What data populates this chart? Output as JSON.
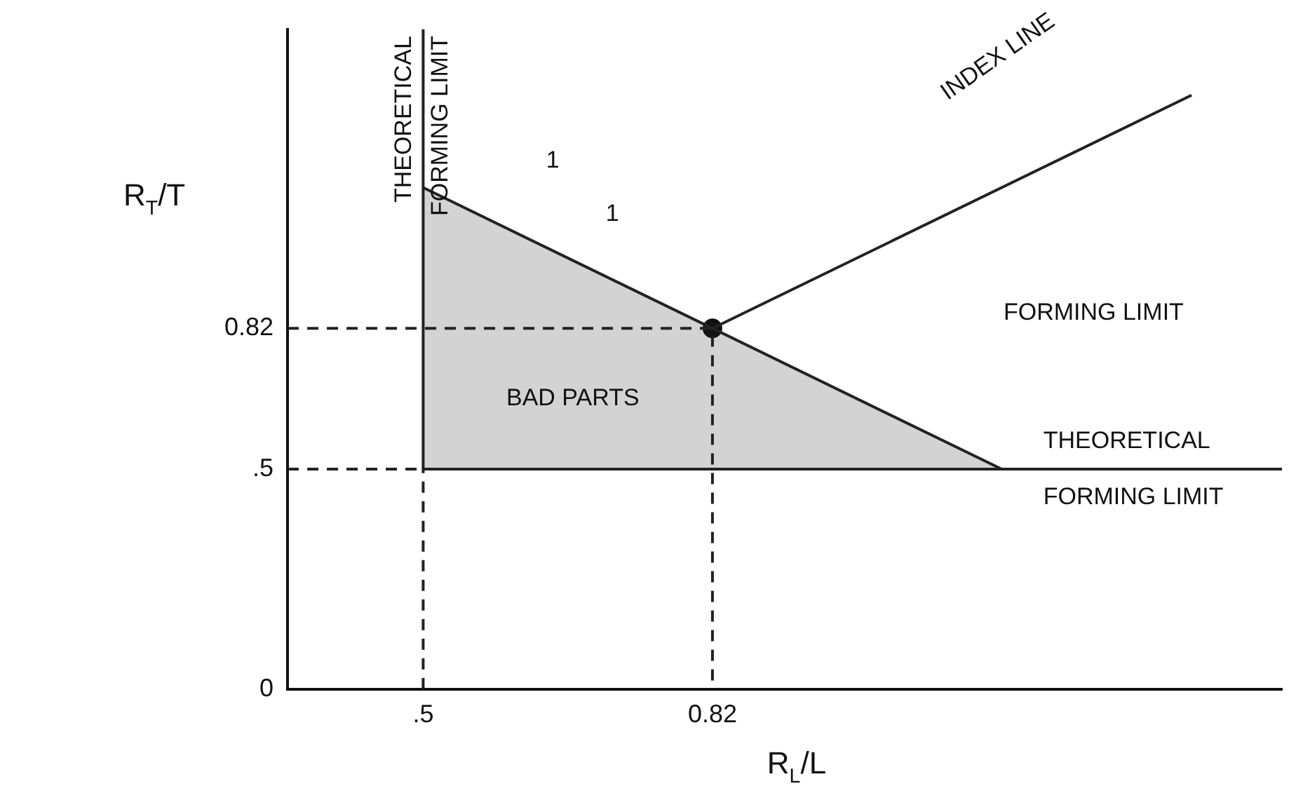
{
  "chart_data": {
    "type": "line",
    "xlabel": "R$_{L}$/L",
    "ylabel": "R$_{T}$/T",
    "xlim": [
      0.35,
      1.45
    ],
    "ylim": [
      0,
      1.5
    ],
    "xticks": [
      {
        "value": 0.5,
        "label": ".5"
      },
      {
        "value": 0.82,
        "label": "0.82"
      }
    ],
    "yticks": [
      0,
      {
        "value": 0.5,
        "label": ".5"
      },
      {
        "value": 0.82,
        "label": "0.82"
      }
    ],
    "grid": false,
    "legend": false,
    "series": [
      {
        "type": "area",
        "color": "#222222",
        "x": [
          0.5,
          1.14
        ],
        "values": [
          1.14,
          0.5
        ]
      },
      {
        "type": "line",
        "color": "#222222",
        "x": [
          0.82,
          1.35
        ],
        "values": [
          0.82,
          1.35
        ]
      },
      {
        "type": "line",
        "color": "#222222",
        "x": [
          0.5,
          0.5
        ],
        "values": [
          0.5,
          1.5
        ]
      },
      {
        "type": "line",
        "color": "#222222",
        "x": [
          0.5,
          1.45
        ],
        "values": [
          0.5,
          0.5
        ]
      },
      {
        "type": "line",
        "color": "#222222",
        "line_style": "dashed",
        "x": [
          0.35,
          0.82,
          0.82
        ],
        "values": [
          0.82,
          0.82,
          0
        ]
      },
      {
        "type": "line",
        "color": "#222222",
        "line_style": "dashed",
        "x": [
          0.5,
          0.5
        ],
        "values": [
          0,
          0.5
        ]
      },
      {
        "type": "line",
        "color": "#222222",
        "line_style": "dashed",
        "x": [
          0.35,
          0.5
        ],
        "values": [
          0.5,
          0.5
        ]
      },
      {
        "type": "scatter",
        "color": "#111111",
        "marker": "circle",
        "x": [
          0.82
        ],
        "values": [
          0.82
        ]
      }
    ],
    "annotations": [
      "INDEX LINE",
      "FORMING LIMIT",
      "BAD PARTS",
      "THEORETICAL FORMING LIMIT",
      "THEORETICAL FORMING LIMIT",
      "1",
      "1"
    ]
  }
}
